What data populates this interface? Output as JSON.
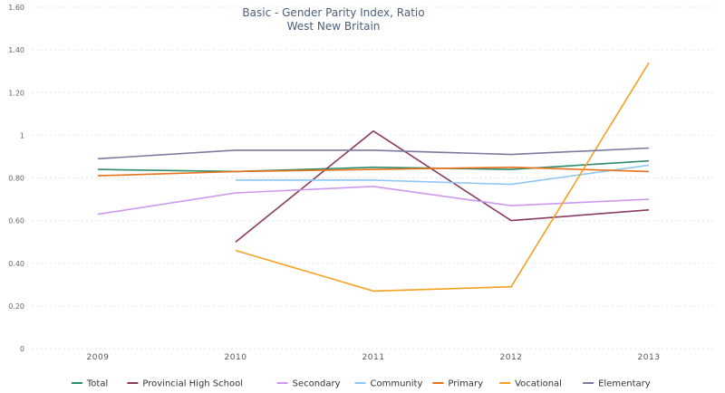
{
  "chart_data": {
    "type": "line",
    "title": "Basic - Gender Parity Index, Ratio",
    "subtitle": "West New Britain",
    "x": [
      "2009",
      "2010",
      "2011",
      "2012",
      "2013"
    ],
    "ylim": [
      0,
      1.6
    ],
    "yticks": [
      "0",
      "0.20",
      "0.40",
      "0.60",
      "0.80",
      "1",
      "1.20",
      "1.40",
      "1.60"
    ],
    "ytick_values": [
      0,
      0.2,
      0.4,
      0.6,
      0.8,
      1.0,
      1.2,
      1.4,
      1.6
    ],
    "grid": true,
    "legend_position": "bottom",
    "series": [
      {
        "name": "Total",
        "color": "#2e8b6e",
        "values": [
          0.84,
          0.83,
          0.85,
          0.84,
          0.88
        ]
      },
      {
        "name": "Provincial High School",
        "color": "#8b3a62",
        "values": [
          null,
          0.5,
          1.02,
          0.6,
          0.65
        ]
      },
      {
        "name": "Secondary",
        "color": "#cc99ee",
        "values": [
          0.63,
          0.73,
          0.76,
          0.67,
          0.7
        ]
      },
      {
        "name": "Community",
        "color": "#8ec8f2",
        "values": [
          null,
          0.79,
          0.79,
          0.77,
          0.86
        ]
      },
      {
        "name": "Primary",
        "color": "#e8731a",
        "values": [
          0.81,
          0.83,
          0.84,
          0.85,
          0.83
        ]
      },
      {
        "name": "Vocational",
        "color": "#f5a020",
        "values": [
          null,
          0.46,
          0.27,
          0.29,
          1.34
        ]
      },
      {
        "name": "Elementary",
        "color": "#7a7a9e",
        "values": [
          0.89,
          0.93,
          0.93,
          0.91,
          0.94
        ]
      }
    ]
  }
}
